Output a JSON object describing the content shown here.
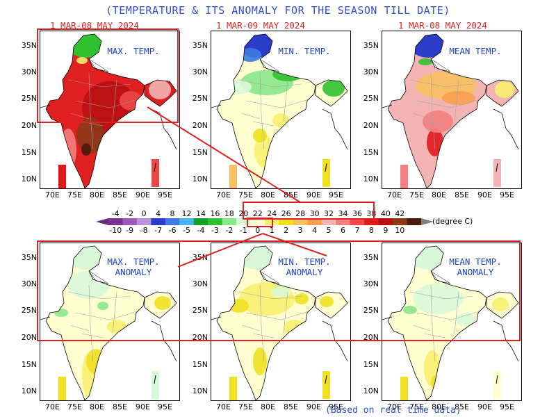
{
  "title": "(TEMPERATURE & ITS ANOMALY FOR THE SEASON TILL DATE)",
  "dates": [
    "1 MAR-08 MAY 2024",
    "1 MAR-09 MAY 2024",
    "1 MAR-08 MAY 2024"
  ],
  "panels": [
    {
      "label": [
        "MAX. TEMP.",
        ""
      ],
      "theme": "max"
    },
    {
      "label": [
        "MIN. TEMP.",
        ""
      ],
      "theme": "min"
    },
    {
      "label": [
        "MEAN TEMP.",
        ""
      ],
      "theme": "mean"
    },
    {
      "label": [
        "MAX. TEMP.",
        "ANOMALY"
      ],
      "theme": "anom1"
    },
    {
      "label": [
        "MIN. TEMP.",
        "ANOMALY"
      ],
      "theme": "anom2"
    },
    {
      "label": [
        "MEAN TEMP.",
        "ANOMALY"
      ],
      "theme": "anom3"
    }
  ],
  "lat_labels": [
    "35N",
    "30N",
    "25N",
    "20N",
    "15N",
    "10N"
  ],
  "lon_labels": [
    "70E",
    "75E",
    "80E",
    "85E",
    "90E",
    "95E"
  ],
  "colorbar": {
    "temperature_ticks": [
      "-4",
      "-2",
      "0",
      "4",
      "8",
      "12",
      "14",
      "16",
      "18",
      "20",
      "22",
      "24",
      "26",
      "28",
      "30",
      "32",
      "34",
      "36",
      "38",
      "40",
      "42"
    ],
    "anomaly_ticks": [
      "-10",
      "-9",
      "-8",
      "-7",
      "-6",
      "-5",
      "-4",
      "-3",
      "-2",
      "-1",
      "0",
      "1",
      "2",
      "3",
      "4",
      "5",
      "6",
      "7",
      "8",
      "9",
      "10"
    ],
    "colors": [
      "#7a2e8e",
      "#9a58b8",
      "#b994d8",
      "#2a3cc8",
      "#3c7ae0",
      "#4ab4f0",
      "#14a028",
      "#30c030",
      "#8ae88a",
      "#d8f8d8",
      "#ffffd0",
      "#f8f070",
      "#f0e020",
      "#f8c060",
      "#f8a050",
      "#f4b4b4",
      "#f48080",
      "#ec4848",
      "#e01818",
      "#b81010",
      "#8a3a18",
      "#4a1a0a"
    ],
    "unit": "(degree C)"
  },
  "footnote": "(Based on real time data)"
}
